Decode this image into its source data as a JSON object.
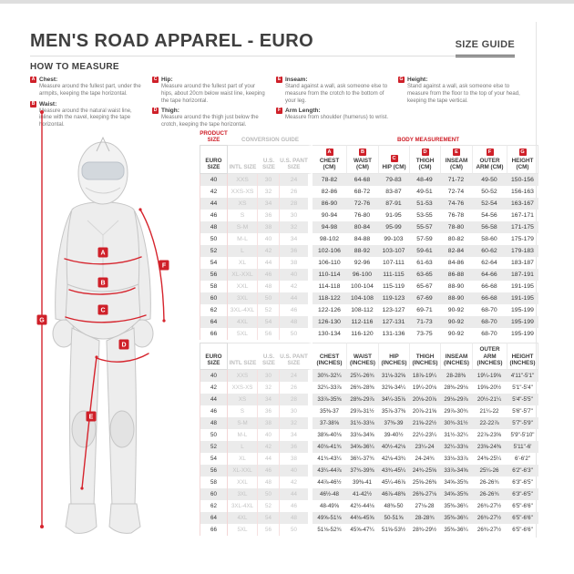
{
  "header": {
    "title": "MEN'S ROAD APPAREL - EURO",
    "size_guide_label": "SIZE GUIDE"
  },
  "letters": [
    "A",
    "B",
    "C",
    "D",
    "E",
    "F",
    "G"
  ],
  "how_to_measure": {
    "title": "HOW TO MEASURE",
    "items": [
      {
        "label": "Chest:",
        "text": "Measure around the fullest part, under the armpits, keeping the tape horizontal."
      },
      {
        "label": "Waist:",
        "text": "Measure around the natural waist line, inline with the navel, keeping the tape horizontal."
      },
      {
        "label": "Hip:",
        "text": "Measure around the fullest part of your hips, about 20cm below waist line, keeping the tape horizontal."
      },
      {
        "label": "Thigh:",
        "text": "Measure around the thigh just below the crotch, keeping the tape horizontal."
      },
      {
        "label": "Inseam:",
        "text": "Stand against a wall, ask someone else to measure from the crotch to the bottom of your leg."
      },
      {
        "label": "Arm Length:",
        "text": "Measure from shoulder (humerus) to wrist."
      },
      {
        "label": "Height:",
        "text": "Stand against a wall, ask someone else to measure from the floor to the top of your head, keeping the tape vertical."
      }
    ]
  },
  "table": {
    "group_headers": {
      "product_size": "PRODUCT SIZE",
      "conversion_guide": "CONVERSION GUIDE",
      "body_measurement": "BODY MEASUREMENT"
    },
    "cm": {
      "columns": [
        "EURO SIZE",
        "INTL SIZE",
        "U.S. SIZE",
        "U.S. PANT SIZE",
        "CHEST (CM)",
        "WAIST (CM)",
        "HIP (CM)",
        "THIGH (CM)",
        "INSEAM (CM)",
        "OUTER ARM (CM)",
        "HEIGHT (CM)"
      ],
      "rows": [
        [
          "40",
          "XXS",
          "30",
          "24",
          "78-82",
          "64-68",
          "79-83",
          "48-49",
          "71-72",
          "49-50",
          "150-156"
        ],
        [
          "42",
          "XXS-XS",
          "32",
          "26",
          "82-86",
          "68-72",
          "83-87",
          "49-51",
          "72-74",
          "50-52",
          "156-163"
        ],
        [
          "44",
          "XS",
          "34",
          "28",
          "86-90",
          "72-76",
          "87-91",
          "51-53",
          "74-76",
          "52-54",
          "163-167"
        ],
        [
          "46",
          "S",
          "36",
          "30",
          "90-94",
          "76-80",
          "91-95",
          "53-55",
          "76-78",
          "54-56",
          "167-171"
        ],
        [
          "48",
          "S-M",
          "38",
          "32",
          "94-98",
          "80-84",
          "95-99",
          "55-57",
          "78-80",
          "56-58",
          "171-175"
        ],
        [
          "50",
          "M-L",
          "40",
          "34",
          "98-102",
          "84-88",
          "99-103",
          "57-59",
          "80-82",
          "58-60",
          "175-179"
        ],
        [
          "52",
          "L",
          "42",
          "36",
          "102-106",
          "88-92",
          "103-107",
          "59-61",
          "82-84",
          "60-62",
          "179-183"
        ],
        [
          "54",
          "XL",
          "44",
          "38",
          "106-110",
          "92-96",
          "107-111",
          "61-63",
          "84-86",
          "62-64",
          "183-187"
        ],
        [
          "56",
          "XL-XXL",
          "46",
          "40",
          "110-114",
          "96-100",
          "111-115",
          "63-65",
          "86-88",
          "64-66",
          "187-191"
        ],
        [
          "58",
          "XXL",
          "48",
          "42",
          "114-118",
          "100-104",
          "115-119",
          "65-67",
          "88-90",
          "66-68",
          "191-195"
        ],
        [
          "60",
          "3XL",
          "50",
          "44",
          "118-122",
          "104-108",
          "119-123",
          "67-69",
          "88-90",
          "66-68",
          "191-195"
        ],
        [
          "62",
          "3XL-4XL",
          "52",
          "46",
          "122-126",
          "108-112",
          "123-127",
          "69-71",
          "90-92",
          "68-70",
          "195-199"
        ],
        [
          "64",
          "4XL",
          "54",
          "48",
          "126-130",
          "112-116",
          "127-131",
          "71-73",
          "90-92",
          "68-70",
          "195-199"
        ],
        [
          "66",
          "5XL",
          "56",
          "50",
          "130-134",
          "116-120",
          "131-136",
          "73-75",
          "90-92",
          "68-70",
          "195-199"
        ]
      ]
    },
    "inches": {
      "columns": [
        "EURO SIZE",
        "INTL SIZE",
        "U.S. SIZE",
        "U.S. PANT SIZE",
        "CHEST (INCHES)",
        "WAIST (INCHES)",
        "HIP (INCHES)",
        "THIGH (INCHES)",
        "INSEAM (INCHES)",
        "OUTER ARM (INCHES)",
        "HEIGHT (INCHES)"
      ],
      "rows": [
        [
          "40",
          "XXS",
          "30",
          "24",
          "30¾-32¼",
          "25¼-26¾",
          "31⅛-32⅝",
          "18⅞-19¼",
          "28-28⅜",
          "19¼-19⅝",
          "4'11\"-5'1\""
        ],
        [
          "42",
          "XXS-XS",
          "32",
          "26",
          "32¼-33⅞",
          "26¾-28⅜",
          "32⅝-34¼",
          "19¼-20⅛",
          "28⅜-29⅛",
          "19⅝-20½",
          "5'1\"-5'4\""
        ],
        [
          "44",
          "XS",
          "34",
          "28",
          "33⅞-35⅜",
          "28⅜-29⅞",
          "34¼-35⅞",
          "20⅛-20⅞",
          "29⅛-29⅞",
          "20½-21¼",
          "5'4\"-5'5\""
        ],
        [
          "46",
          "S",
          "36",
          "30",
          "35⅜-37",
          "29⅞-31½",
          "35⅞-37⅜",
          "20⅞-21⅝",
          "29⅞-30¾",
          "21¼-22",
          "5'6\"-5'7\""
        ],
        [
          "48",
          "S-M",
          "38",
          "32",
          "37-38⅝",
          "31½-33⅛",
          "37⅜-39",
          "21⅝-22½",
          "30¾-31½",
          "22-22⅞",
          "5'7\"-5'9\""
        ],
        [
          "50",
          "M-L",
          "40",
          "34",
          "38⅝-40⅛",
          "33⅛-34⅝",
          "39-40½",
          "22½-23¼",
          "31½-32¼",
          "22⅞-23⅝",
          "5'9\"-5'10\""
        ],
        [
          "52",
          "L",
          "42",
          "36",
          "40⅛-41¾",
          "34⅝-36¼",
          "40½-42⅛",
          "23¼-24",
          "32¼-33⅛",
          "23⅝-24⅜",
          "5'11\"-6'"
        ],
        [
          "54",
          "XL",
          "44",
          "38",
          "41¾-43¼",
          "36¼-37¾",
          "42⅛-43¾",
          "24-24¾",
          "33⅛-33⅞",
          "24⅜-25¼",
          "6'-6'2\""
        ],
        [
          "56",
          "XL-XXL",
          "46",
          "40",
          "43¼-44⅞",
          "37¾-39⅜",
          "43¾-45¼",
          "24¾-25⅝",
          "33⅞-34⅝",
          "25¼-26",
          "6'2\"-6'3\""
        ],
        [
          "58",
          "XXL",
          "48",
          "42",
          "44⅞-46½",
          "39⅜-41",
          "45¼-46⅞",
          "25⅝-26⅜",
          "34⅝-35⅜",
          "26-26¾",
          "6'3\"-6'5\""
        ],
        [
          "60",
          "3XL",
          "50",
          "44",
          "46½-48",
          "41-42½",
          "46⅞-48⅜",
          "26⅜-27⅛",
          "34⅝-35⅜",
          "26-26¾",
          "6'3\"-6'5\""
        ],
        [
          "62",
          "3XL-4XL",
          "52",
          "46",
          "48-49⅝",
          "42½-44⅛",
          "48⅜-50",
          "27⅛-28",
          "35⅜-36¼",
          "26¾-27½",
          "6'5\"-6'6\""
        ],
        [
          "64",
          "4XL",
          "54",
          "48",
          "49⅝-51⅛",
          "44⅛-45⅝",
          "50-51⅝",
          "28-28¾",
          "35⅜-36¼",
          "26¾-27½",
          "6'5\"-6'6\""
        ],
        [
          "66",
          "5XL",
          "56",
          "50",
          "51⅛-52¾",
          "45⅝-47¼",
          "51⅝-53½",
          "28¾-29½",
          "35⅜-36¼",
          "26¾-27½",
          "6'5\"-6'6\""
        ]
      ]
    }
  }
}
